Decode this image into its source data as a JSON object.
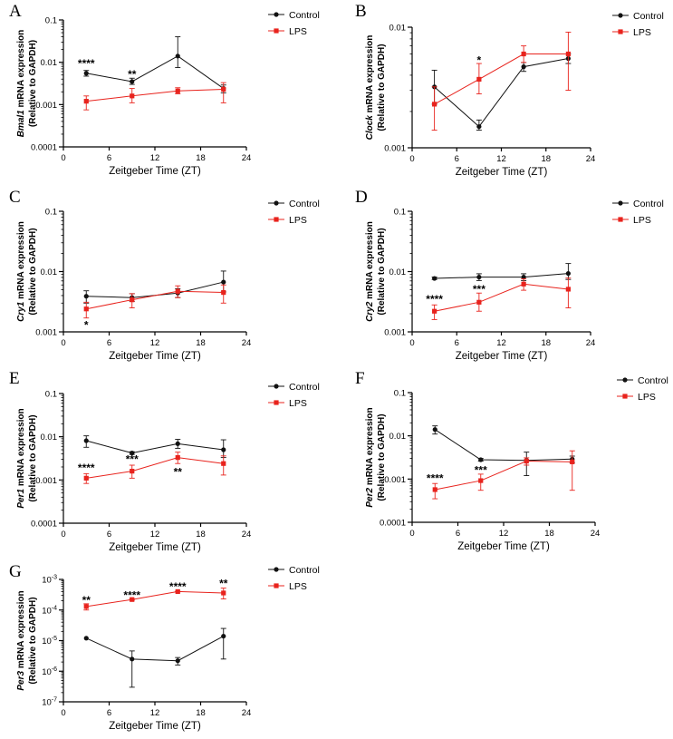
{
  "colors": {
    "control": "#111111",
    "lps": "#e8231d"
  },
  "chart_data": [
    {
      "type": "line",
      "panel": "A",
      "title": "",
      "xlabel": "Zeitgeber Time (ZT)",
      "ylabel_gene": "Bmal1",
      "ylabel_rest": " mRNA expression",
      "ylabel_line2": "(Relative to GAPDH)",
      "yscale": "log",
      "ylim": [
        0.0001,
        0.1
      ],
      "xlim": [
        0,
        24
      ],
      "xticks": [
        "0",
        "6",
        "12",
        "18",
        "24"
      ],
      "yticks": [
        {
          "v": 0.0001,
          "label": "0.0001"
        },
        {
          "v": 0.001,
          "label": "0.001"
        },
        {
          "v": 0.01,
          "label": "0.01"
        },
        {
          "v": 0.1,
          "label": "0.1"
        }
      ],
      "legend": [
        "Control",
        "LPS"
      ],
      "x": [
        3,
        9,
        15,
        21
      ],
      "series": [
        {
          "name": "Control",
          "values": [
            0.0055,
            0.0035,
            0.014,
            0.0024
          ],
          "err_low": [
            0.0047,
            0.003,
            0.0075,
            0.0019
          ],
          "err_high": [
            0.0064,
            0.0042,
            0.04,
            0.0029
          ]
        },
        {
          "name": "LPS",
          "values": [
            0.0012,
            0.0016,
            0.0021,
            0.0023
          ],
          "err_low": [
            0.00075,
            0.0011,
            0.0018,
            0.0011
          ],
          "err_high": [
            0.0016,
            0.0024,
            0.0025,
            0.0033
          ]
        }
      ],
      "annotations": [
        {
          "x": 3,
          "y": 0.0098,
          "text": "****"
        },
        {
          "x": 9,
          "y": 0.0055,
          "text": "**"
        }
      ]
    },
    {
      "type": "line",
      "panel": "B",
      "title": "",
      "xlabel": "Zeitgeber Time (ZT)",
      "ylabel_gene": "Clock",
      "ylabel_rest": " mRNA expression",
      "ylabel_line2": "(Relative to GAPDH)",
      "yscale": "log",
      "ylim": [
        0.001,
        0.01
      ],
      "xlim": [
        0,
        24
      ],
      "xticks": [
        "0",
        "6",
        "12",
        "18",
        "24"
      ],
      "yticks": [
        {
          "v": 0.001,
          "label": "0.001"
        },
        {
          "v": 0.01,
          "label": "0.01"
        }
      ],
      "legend": [
        "Control",
        "LPS"
      ],
      "x": [
        3,
        9,
        15,
        21
      ],
      "series": [
        {
          "name": "Control",
          "values": [
            0.0032,
            0.0015,
            0.0047,
            0.0055
          ],
          "err_low": [
            0.0023,
            0.0014,
            0.0043,
            0.005
          ],
          "err_high": [
            0.0044,
            0.0017,
            0.0051,
            0.006
          ]
        },
        {
          "name": "LPS",
          "values": [
            0.0023,
            0.0037,
            0.006,
            0.006
          ],
          "err_low": [
            0.0014,
            0.0028,
            0.0051,
            0.003
          ],
          "err_high": [
            0.0032,
            0.005,
            0.007,
            0.0091
          ]
        }
      ],
      "annotations": [
        {
          "x": 9,
          "y": 0.0054,
          "text": "*"
        }
      ]
    },
    {
      "type": "line",
      "panel": "C",
      "title": "",
      "xlabel": "Zeitgeber Time (ZT)",
      "ylabel_gene": "Cry1",
      "ylabel_rest": " mRNA expression",
      "ylabel_line2": "(Relative to GAPDH)",
      "yscale": "log",
      "ylim": [
        0.001,
        0.1
      ],
      "xlim": [
        0,
        24
      ],
      "xticks": [
        "0",
        "6",
        "12",
        "18",
        "24"
      ],
      "yticks": [
        {
          "v": 0.001,
          "label": "0.001"
        },
        {
          "v": 0.01,
          "label": "0.01"
        },
        {
          "v": 0.1,
          "label": "0.1"
        }
      ],
      "legend": [
        "Control",
        "LPS"
      ],
      "x": [
        3,
        9,
        15,
        21
      ],
      "series": [
        {
          "name": "Control",
          "values": [
            0.0039,
            0.0037,
            0.0044,
            0.0067
          ],
          "err_low": [
            0.003,
            0.0032,
            0.0037,
            0.0046
          ],
          "err_high": [
            0.0048,
            0.0043,
            0.0052,
            0.0102
          ]
        },
        {
          "name": "LPS",
          "values": [
            0.0024,
            0.0034,
            0.0047,
            0.0045
          ],
          "err_low": [
            0.0017,
            0.0025,
            0.0037,
            0.003
          ],
          "err_high": [
            0.0031,
            0.0043,
            0.0058,
            0.006
          ]
        }
      ],
      "annotations": [
        {
          "x": 3,
          "y": 0.00135,
          "text": "*"
        }
      ]
    },
    {
      "type": "line",
      "panel": "D",
      "title": "",
      "xlabel": "Zeitgeber Time (ZT)",
      "ylabel_gene": "Cry2",
      "ylabel_rest": " mRNA expression",
      "ylabel_line2": "(Relative to GAPDH)",
      "yscale": "log",
      "ylim": [
        0.001,
        0.1
      ],
      "xlim": [
        0,
        24
      ],
      "xticks": [
        "0",
        "6",
        "12",
        "18",
        "24"
      ],
      "yticks": [
        {
          "v": 0.001,
          "label": "0.001"
        },
        {
          "v": 0.01,
          "label": "0.01"
        },
        {
          "v": 0.1,
          "label": "0.1"
        }
      ],
      "legend": [
        "Control",
        "LPS"
      ],
      "x": [
        3,
        9,
        15,
        21
      ],
      "series": [
        {
          "name": "Control",
          "values": [
            0.0077,
            0.0081,
            0.0081,
            0.0093
          ],
          "err_low": [
            0.0074,
            0.0071,
            0.0071,
            0.0074
          ],
          "err_high": [
            0.0081,
            0.0092,
            0.0092,
            0.0136
          ]
        },
        {
          "name": "LPS",
          "values": [
            0.0022,
            0.0031,
            0.0062,
            0.0051
          ],
          "err_low": [
            0.0016,
            0.0022,
            0.0049,
            0.0025
          ],
          "err_high": [
            0.0028,
            0.0044,
            0.0076,
            0.0078
          ]
        }
      ],
      "annotations": [
        {
          "x": 3,
          "y": 0.0036,
          "text": "****"
        },
        {
          "x": 9,
          "y": 0.0053,
          "text": "***"
        }
      ]
    },
    {
      "type": "line",
      "panel": "E",
      "title": "",
      "xlabel": "Zeitgeber Time (ZT)",
      "ylabel_gene": "Per1",
      "ylabel_rest": " mRNA expression",
      "ylabel_line2": "(Relative to GAPDH)",
      "yscale": "log",
      "ylim": [
        0.0001,
        0.1
      ],
      "xlim": [
        0,
        24
      ],
      "xticks": [
        "0",
        "6",
        "12",
        "18",
        "24"
      ],
      "yticks": [
        {
          "v": 0.0001,
          "label": "0.0001"
        },
        {
          "v": 0.001,
          "label": "0.001"
        },
        {
          "v": 0.01,
          "label": "0.01"
        },
        {
          "v": 0.1,
          "label": "0.1"
        }
      ],
      "legend": [
        "Control",
        "LPS"
      ],
      "x": [
        3,
        9,
        15,
        21
      ],
      "series": [
        {
          "name": "Control",
          "values": [
            0.0081,
            0.0042,
            0.0069,
            0.005
          ],
          "err_low": [
            0.0057,
            0.0039,
            0.0054,
            0.0033
          ],
          "err_high": [
            0.0105,
            0.0045,
            0.0087,
            0.0085
          ]
        },
        {
          "name": "LPS",
          "values": [
            0.0011,
            0.0016,
            0.0033,
            0.0024
          ],
          "err_low": [
            0.00083,
            0.0011,
            0.0024,
            0.0013
          ],
          "err_high": [
            0.0014,
            0.0022,
            0.0044,
            0.0036
          ]
        }
      ],
      "annotations": [
        {
          "x": 3,
          "y": 0.002,
          "text": "****"
        },
        {
          "x": 9,
          "y": 0.0032,
          "text": "***"
        },
        {
          "x": 15,
          "y": 0.0016,
          "text": "**"
        }
      ]
    },
    {
      "type": "line",
      "panel": "F",
      "title": "",
      "xlabel": "Zeitgeber Time (ZT)",
      "ylabel_gene": "Per2",
      "ylabel_rest": " mRNA expression",
      "ylabel_line2": "(Relative to GAPDH)",
      "yscale": "log",
      "ylim": [
        0.0001,
        0.1
      ],
      "xlim": [
        0,
        24
      ],
      "xticks": [
        "0",
        "6",
        "12",
        "18",
        "24"
      ],
      "yticks": [
        {
          "v": 0.0001,
          "label": "0.0001"
        },
        {
          "v": 0.001,
          "label": "0.001"
        },
        {
          "v": 0.01,
          "label": "0.01"
        },
        {
          "v": 0.1,
          "label": "0.1"
        }
      ],
      "legend": [
        "Control",
        "LPS"
      ],
      "x": [
        3,
        9,
        15,
        21
      ],
      "series": [
        {
          "name": "Control",
          "values": [
            0.014,
            0.0028,
            0.0027,
            0.0029
          ],
          "err_low": [
            0.011,
            0.0026,
            0.0012,
            0.0024
          ],
          "err_high": [
            0.017,
            0.003,
            0.0042,
            0.0034
          ]
        },
        {
          "name": "LPS",
          "values": [
            0.00057,
            0.00092,
            0.0026,
            0.0025
          ],
          "err_low": [
            0.00035,
            0.00055,
            0.0021,
            0.00055
          ],
          "err_high": [
            0.00079,
            0.0013,
            0.0031,
            0.0045
          ]
        }
      ],
      "annotations": [
        {
          "x": 3,
          "y": 0.0011,
          "text": "****"
        },
        {
          "x": 9,
          "y": 0.0017,
          "text": "***"
        }
      ]
    },
    {
      "type": "line",
      "panel": "G",
      "title": "",
      "xlabel": "Zeitgeber Time (ZT)",
      "ylabel_gene": "Per3",
      "ylabel_rest": " mRNA expression",
      "ylabel_line2": "(Relative to GAPDH)",
      "yscale": "log",
      "ylim": [
        1e-07,
        0.001
      ],
      "xlim": [
        0,
        24
      ],
      "xticks": [
        "0",
        "6",
        "12",
        "18",
        "24"
      ],
      "yticks": [
        {
          "v": 1e-07,
          "base": "10",
          "exp": "-7"
        },
        {
          "v": 1e-06,
          "base": "10",
          "exp": "-6"
        },
        {
          "v": 1e-05,
          "base": "10",
          "exp": "-5"
        },
        {
          "v": 0.0001,
          "base": "10",
          "exp": "-4"
        },
        {
          "v": 0.001,
          "base": "10",
          "exp": "-3"
        }
      ],
      "legend": [
        "Control",
        "LPS"
      ],
      "x": [
        3,
        9,
        15,
        21
      ],
      "series": [
        {
          "name": "Control",
          "values": [
            1.2e-05,
            2.5e-06,
            2.2e-06,
            1.4e-05
          ],
          "err_low": [
            1.2e-05,
            3e-07,
            1.6e-06,
            2.5e-06
          ],
          "err_high": [
            1.2e-05,
            4.6e-06,
            2.8e-06,
            2.5e-05
          ]
        },
        {
          "name": "LPS",
          "values": [
            0.00013,
            0.00022,
            0.0004,
            0.00036
          ],
          "err_low": [
            0.0001,
            0.00021,
            0.00039,
            0.00023
          ],
          "err_high": [
            0.00016,
            0.00023,
            0.00041,
            0.00052
          ]
        }
      ],
      "annotations": [
        {
          "x": 3,
          "y": 0.00022,
          "text": "**"
        },
        {
          "x": 9,
          "y": 0.00033,
          "text": "****"
        },
        {
          "x": 15,
          "y": 0.00062,
          "text": "****"
        },
        {
          "x": 21,
          "y": 0.00078,
          "text": "**"
        }
      ]
    }
  ]
}
